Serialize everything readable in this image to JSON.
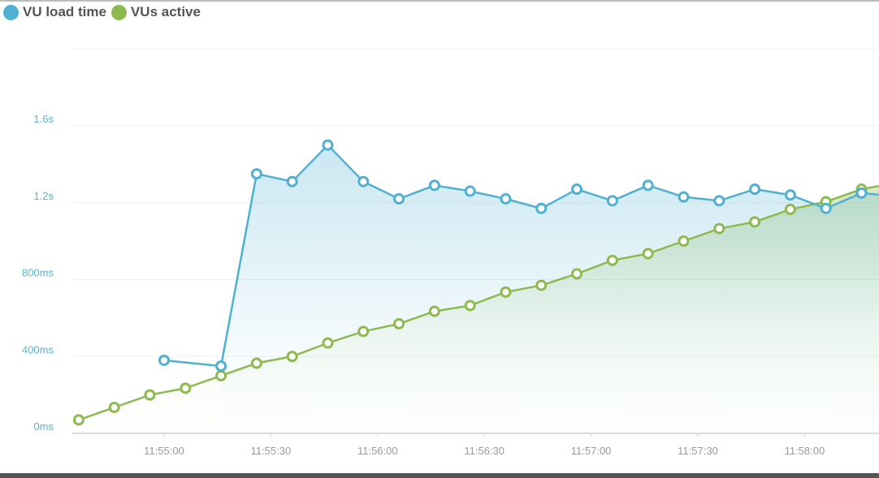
{
  "chart_data": {
    "type": "line",
    "title": "",
    "xlabel": "",
    "ylabel": "",
    "legend_position": "top-left",
    "grid": true,
    "y_ticks": [
      "0ms",
      "400ms",
      "800ms",
      "1.2s",
      "1.6s"
    ],
    "y_tick_values": [
      0,
      400,
      800,
      1200,
      1600
    ],
    "ylim": [
      0,
      2000
    ],
    "x_ticks": [
      "11:55:00",
      "11:55:30",
      "11:56:00",
      "11:56:30",
      "11:57:00",
      "11:57:30",
      "11:58:00"
    ],
    "xlim": [
      "11:54:30",
      "11:58:26"
    ],
    "series": [
      {
        "name": "VU load time",
        "color": "#4fb0d1",
        "unit": "ms",
        "x": [
          "11:55:00",
          "11:55:16",
          "11:55:26",
          "11:55:36",
          "11:55:46",
          "11:55:56",
          "11:56:06",
          "11:56:16",
          "11:56:26",
          "11:56:36",
          "11:56:46",
          "11:56:56",
          "11:57:06",
          "11:57:16",
          "11:57:26",
          "11:57:36",
          "11:57:46",
          "11:57:56",
          "11:58:06",
          "11:58:16"
        ],
        "values": [
          380,
          350,
          1350,
          1310,
          1500,
          1310,
          1220,
          1290,
          1260,
          1220,
          1170,
          1270,
          1210,
          1290,
          1230,
          1210,
          1270,
          1240,
          1170,
          1250
        ]
      },
      {
        "name": "VUs active",
        "color": "#8cba4f",
        "axis": "hidden, plotted on the same vertical range",
        "x": [
          "11:54:36",
          "11:54:46",
          "11:54:56",
          "11:55:06",
          "11:55:16",
          "11:55:26",
          "11:55:36",
          "11:55:46",
          "11:55:56",
          "11:56:06",
          "11:56:16",
          "11:56:26",
          "11:56:36",
          "11:56:46",
          "11:56:56",
          "11:57:06",
          "11:57:16",
          "11:57:26",
          "11:57:36",
          "11:57:46",
          "11:57:56",
          "11:58:06",
          "11:58:16"
        ],
        "values": [
          70,
          135,
          200,
          235,
          300,
          365,
          400,
          470,
          530,
          570,
          635,
          665,
          735,
          770,
          830,
          900,
          935,
          1000,
          1065,
          1100,
          1165,
          1205,
          1270
        ]
      }
    ]
  }
}
